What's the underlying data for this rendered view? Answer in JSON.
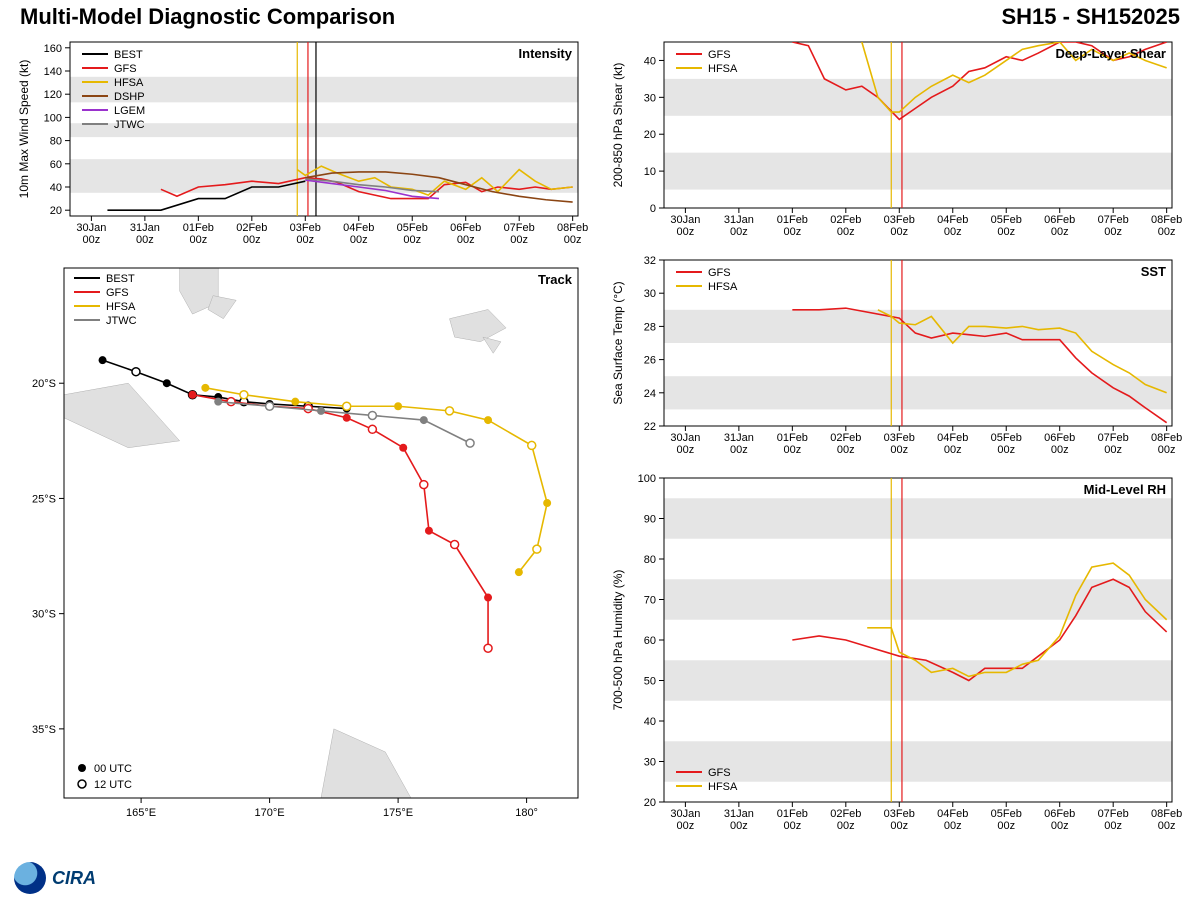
{
  "header": {
    "title_left": "Multi-Model Diagnostic Comparison",
    "title_right": "SH15 - SH152025"
  },
  "time_axis": {
    "labels": [
      "30Jan\n00z",
      "31Jan\n00z",
      "01Feb\n00z",
      "02Feb\n00z",
      "03Feb\n00z",
      "04Feb\n00z",
      "05Feb\n00z",
      "06Feb\n00z",
      "07Feb\n00z",
      "08Feb\n00z"
    ],
    "x_values": [
      0,
      1,
      2,
      3,
      4,
      5,
      6,
      7,
      8,
      9
    ]
  },
  "colors": {
    "BEST": "#000000",
    "GFS": "#e41a1c",
    "HFSA": "#e6b800",
    "DSHP": "#8b4513",
    "LGEM": "#9a32cd",
    "JTWC": "#808080",
    "bg": "#ffffff",
    "band": "#e5e5e5",
    "axis": "#000000"
  },
  "analysis_vlines": {
    "GFS_x": 4.05,
    "HFSA_x": 3.85,
    "BEST_x": 4.2
  },
  "intensity": {
    "type": "line",
    "title": "Intensity",
    "ylabel": "10m Max Wind Speed (kt)",
    "ylim": [
      15,
      165
    ],
    "yticks": [
      20,
      40,
      60,
      80,
      100,
      120,
      140,
      160
    ],
    "bands": [
      [
        35,
        64
      ],
      [
        83,
        95
      ],
      [
        113,
        135
      ]
    ],
    "legend_models": [
      "BEST",
      "GFS",
      "HFSA",
      "DSHP",
      "LGEM",
      "JTWC"
    ],
    "series": {
      "BEST": [
        [
          0.3,
          20
        ],
        [
          0.6,
          20
        ],
        [
          1,
          20
        ],
        [
          1.3,
          20
        ],
        [
          2,
          30
        ],
        [
          2.5,
          30
        ],
        [
          3,
          40
        ],
        [
          3.5,
          40
        ],
        [
          4,
          45
        ]
      ],
      "GFS": [
        [
          1.3,
          38
        ],
        [
          1.6,
          32
        ],
        [
          2,
          40
        ],
        [
          2.5,
          42
        ],
        [
          3,
          45
        ],
        [
          3.5,
          43
        ],
        [
          4,
          48
        ],
        [
          4.3,
          47
        ],
        [
          4.6,
          44
        ],
        [
          5,
          36
        ],
        [
          5.3,
          33
        ],
        [
          5.6,
          30
        ],
        [
          6,
          30
        ],
        [
          6.3,
          30
        ],
        [
          6.6,
          42
        ],
        [
          7,
          44
        ],
        [
          7.3,
          36
        ],
        [
          7.6,
          40
        ],
        [
          8,
          38
        ],
        [
          8.3,
          40
        ],
        [
          8.6,
          38
        ],
        [
          9,
          40
        ]
      ],
      "HFSA": [
        [
          3.85,
          55
        ],
        [
          4,
          50
        ],
        [
          4.3,
          58
        ],
        [
          4.6,
          52
        ],
        [
          5,
          45
        ],
        [
          5.3,
          48
        ],
        [
          5.6,
          40
        ],
        [
          6,
          38
        ],
        [
          6.3,
          33
        ],
        [
          6.6,
          45
        ],
        [
          7,
          38
        ],
        [
          7.3,
          48
        ],
        [
          7.6,
          36
        ],
        [
          8,
          55
        ],
        [
          8.3,
          45
        ],
        [
          8.6,
          38
        ],
        [
          9,
          40
        ]
      ],
      "DSHP": [
        [
          4,
          48
        ],
        [
          4.5,
          52
        ],
        [
          5,
          53
        ],
        [
          5.5,
          53
        ],
        [
          6,
          51
        ],
        [
          6.5,
          48
        ],
        [
          7,
          42
        ],
        [
          7.5,
          36
        ],
        [
          8,
          32
        ],
        [
          8.5,
          29
        ],
        [
          9,
          27
        ]
      ],
      "LGEM": [
        [
          4,
          46
        ],
        [
          4.5,
          43
        ],
        [
          5,
          40
        ],
        [
          5.5,
          37
        ],
        [
          6,
          32
        ],
        [
          6.5,
          30
        ]
      ],
      "JTWC": [
        [
          4,
          47
        ],
        [
          4.5,
          45
        ],
        [
          5,
          42
        ],
        [
          5.5,
          40
        ],
        [
          6,
          37
        ],
        [
          6.5,
          36
        ]
      ]
    }
  },
  "shear": {
    "type": "line",
    "title": "Deep-Layer Shear",
    "ylabel": "200-850 hPa Shear (kt)",
    "ylim": [
      0,
      45
    ],
    "yticks": [
      0,
      10,
      20,
      30,
      40
    ],
    "bands": [
      [
        5,
        15
      ],
      [
        25,
        35
      ]
    ],
    "legend_models": [
      "GFS",
      "HFSA"
    ],
    "series": {
      "GFS": [
        [
          2.0,
          45
        ],
        [
          2.3,
          44
        ],
        [
          2.6,
          35
        ],
        [
          3,
          32
        ],
        [
          3.3,
          33
        ],
        [
          3.6,
          30
        ],
        [
          4,
          24
        ],
        [
          4.3,
          27
        ],
        [
          4.6,
          30
        ],
        [
          5,
          33
        ],
        [
          5.3,
          37
        ],
        [
          5.6,
          38
        ],
        [
          6,
          41
        ],
        [
          6.3,
          40
        ],
        [
          6.6,
          42
        ],
        [
          7,
          45
        ],
        [
          7.3,
          45
        ],
        [
          7.6,
          44
        ],
        [
          8,
          40
        ],
        [
          8.3,
          41
        ],
        [
          8.6,
          43
        ],
        [
          9,
          45
        ]
      ],
      "HFSA": [
        [
          3.3,
          45
        ],
        [
          3.6,
          30
        ],
        [
          3.85,
          26
        ],
        [
          4,
          26
        ],
        [
          4.3,
          30
        ],
        [
          4.6,
          33
        ],
        [
          5,
          36
        ],
        [
          5.3,
          34
        ],
        [
          5.6,
          36
        ],
        [
          6,
          40
        ],
        [
          6.3,
          43
        ],
        [
          6.6,
          44
        ],
        [
          7,
          45
        ],
        [
          7.3,
          40
        ],
        [
          7.6,
          43
        ],
        [
          8,
          40
        ],
        [
          8.3,
          42
        ],
        [
          8.6,
          40
        ],
        [
          9,
          38
        ]
      ]
    }
  },
  "sst": {
    "type": "line",
    "title": "SST",
    "ylabel": "Sea Surface Temp (°C)",
    "ylim": [
      22,
      32
    ],
    "yticks": [
      22,
      24,
      26,
      28,
      30,
      32
    ],
    "bands": [
      [
        23,
        25
      ],
      [
        27,
        29
      ]
    ],
    "legend_models": [
      "GFS",
      "HFSA"
    ],
    "series": {
      "GFS": [
        [
          2.0,
          29.0
        ],
        [
          2.5,
          29.0
        ],
        [
          3,
          29.1
        ],
        [
          4,
          28.5
        ],
        [
          4.3,
          27.6
        ],
        [
          4.6,
          27.3
        ],
        [
          5,
          27.6
        ],
        [
          5.3,
          27.5
        ],
        [
          5.6,
          27.4
        ],
        [
          6,
          27.6
        ],
        [
          6.3,
          27.2
        ],
        [
          6.6,
          27.2
        ],
        [
          7,
          27.2
        ],
        [
          7.3,
          26.1
        ],
        [
          7.6,
          25.2
        ],
        [
          8,
          24.3
        ],
        [
          8.3,
          23.8
        ],
        [
          8.6,
          23.1
        ],
        [
          9,
          22.2
        ]
      ],
      "HFSA": [
        [
          3.6,
          29.0
        ],
        [
          3.85,
          28.6
        ],
        [
          4,
          28.2
        ],
        [
          4.3,
          28.1
        ],
        [
          4.6,
          28.6
        ],
        [
          5,
          27.0
        ],
        [
          5.3,
          28.0
        ],
        [
          5.6,
          28.0
        ],
        [
          6,
          27.9
        ],
        [
          6.3,
          28.0
        ],
        [
          6.6,
          27.8
        ],
        [
          7,
          27.9
        ],
        [
          7.3,
          27.6
        ],
        [
          7.6,
          26.5
        ],
        [
          8,
          25.7
        ],
        [
          8.3,
          25.2
        ],
        [
          8.6,
          24.5
        ],
        [
          9,
          24.0
        ]
      ]
    }
  },
  "rh": {
    "type": "line",
    "title": "Mid-Level RH",
    "ylabel": "700-500 hPa Humidity (%)",
    "ylim": [
      20,
      100
    ],
    "yticks": [
      20,
      30,
      40,
      50,
      60,
      70,
      80,
      90,
      100
    ],
    "bands": [
      [
        25,
        35
      ],
      [
        45,
        55
      ],
      [
        65,
        75
      ],
      [
        85,
        95
      ]
    ],
    "legend_models": [
      "GFS",
      "HFSA"
    ],
    "legend_pos": "bottom-left",
    "series": {
      "GFS": [
        [
          2.0,
          60
        ],
        [
          2.5,
          61
        ],
        [
          3,
          60
        ],
        [
          3.5,
          58
        ],
        [
          4,
          56
        ],
        [
          4.5,
          55
        ],
        [
          5,
          52
        ],
        [
          5.3,
          50
        ],
        [
          5.6,
          53
        ],
        [
          6,
          53
        ],
        [
          6.3,
          53
        ],
        [
          6.6,
          56
        ],
        [
          7,
          60
        ],
        [
          7.3,
          66
        ],
        [
          7.6,
          73
        ],
        [
          8,
          75
        ],
        [
          8.3,
          73
        ],
        [
          8.6,
          67
        ],
        [
          9,
          62
        ]
      ],
      "HFSA": [
        [
          3.4,
          63
        ],
        [
          3.6,
          63
        ],
        [
          3.85,
          63
        ],
        [
          4,
          57
        ],
        [
          4.3,
          55
        ],
        [
          4.6,
          52
        ],
        [
          5,
          53
        ],
        [
          5.3,
          51
        ],
        [
          5.6,
          52
        ],
        [
          6,
          52
        ],
        [
          6.3,
          54
        ],
        [
          6.6,
          55
        ],
        [
          7,
          61
        ],
        [
          7.3,
          71
        ],
        [
          7.6,
          78
        ],
        [
          8,
          79
        ],
        [
          8.3,
          76
        ],
        [
          8.6,
          70
        ],
        [
          9,
          65
        ]
      ]
    }
  },
  "track": {
    "type": "map",
    "title": "Track",
    "xlim": [
      162,
      182
    ],
    "ylim": [
      -38,
      -15
    ],
    "xticks": [
      165,
      170,
      175,
      180
    ],
    "xtick_labels": [
      "165°E",
      "170°E",
      "175°E",
      "180°"
    ],
    "yticks": [
      -20,
      -25,
      -30,
      -35
    ],
    "ytick_labels": [
      "20°S",
      "25°S",
      "30°S",
      "35°S"
    ],
    "legend_models": [
      "BEST",
      "GFS",
      "HFSA",
      "JTWC"
    ],
    "marker_legend": [
      {
        "label": "00 UTC",
        "fill": "solid"
      },
      {
        "label": "12 UTC",
        "fill": "open"
      }
    ],
    "tracks": {
      "BEST": [
        [
          163.5,
          -19.0,
          0
        ],
        [
          164.8,
          -19.5,
          1
        ],
        [
          166.0,
          -20.0,
          0
        ],
        [
          167.0,
          -20.5,
          1
        ],
        [
          168.0,
          -20.6,
          0
        ],
        [
          169.0,
          -20.8,
          1
        ],
        [
          170.0,
          -20.9,
          0
        ],
        [
          171.5,
          -21.0,
          1
        ],
        [
          173.0,
          -21.1,
          0
        ]
      ],
      "GFS": [
        [
          167.0,
          -20.5,
          0
        ],
        [
          168.5,
          -20.8,
          1
        ],
        [
          170.0,
          -21.0,
          0
        ],
        [
          171.5,
          -21.1,
          1
        ],
        [
          173.0,
          -21.5,
          0
        ],
        [
          174.0,
          -22.0,
          1
        ],
        [
          175.2,
          -22.8,
          0
        ],
        [
          176.0,
          -24.4,
          1
        ],
        [
          176.2,
          -26.4,
          0
        ],
        [
          177.2,
          -27.0,
          1
        ],
        [
          178.5,
          -29.3,
          0
        ],
        [
          178.5,
          -31.5,
          1
        ]
      ],
      "HFSA": [
        [
          167.5,
          -20.2,
          0
        ],
        [
          169.0,
          -20.5,
          1
        ],
        [
          171.0,
          -20.8,
          0
        ],
        [
          173.0,
          -21.0,
          1
        ],
        [
          175.0,
          -21.0,
          0
        ],
        [
          177.0,
          -21.2,
          1
        ],
        [
          178.5,
          -21.6,
          0
        ],
        [
          180.2,
          -22.7,
          1
        ],
        [
          180.8,
          -25.2,
          0
        ],
        [
          180.4,
          -27.2,
          1
        ],
        [
          179.7,
          -28.2,
          0
        ]
      ],
      "JTWC": [
        [
          168.0,
          -20.8,
          0
        ],
        [
          170.0,
          -21.0,
          1
        ],
        [
          172.0,
          -21.2,
          0
        ],
        [
          174.0,
          -21.4,
          1
        ],
        [
          176.0,
          -21.6,
          0
        ],
        [
          177.8,
          -22.6,
          1
        ]
      ]
    },
    "landmasses": [
      [
        [
          162,
          -20.5
        ],
        [
          164.5,
          -20.0
        ],
        [
          166.5,
          -22.5
        ],
        [
          164.5,
          -22.8
        ],
        [
          162,
          -21.5
        ]
      ],
      [
        [
          166.5,
          -15
        ],
        [
          168,
          -15
        ],
        [
          168,
          -16.5
        ],
        [
          167,
          -17
        ],
        [
          166.5,
          -16
        ]
      ],
      [
        [
          167.8,
          -16.2
        ],
        [
          168.7,
          -16.4
        ],
        [
          168.2,
          -17.2
        ],
        [
          167.6,
          -16.8
        ]
      ],
      [
        [
          177.0,
          -17.2
        ],
        [
          178.5,
          -16.8
        ],
        [
          179.2,
          -17.6
        ],
        [
          178.2,
          -18.2
        ],
        [
          177.2,
          -18.0
        ]
      ],
      [
        [
          178.3,
          -18.0
        ],
        [
          179.0,
          -18.2
        ],
        [
          178.7,
          -18.7
        ]
      ],
      [
        [
          172.5,
          -35.0
        ],
        [
          174.5,
          -36.0
        ],
        [
          175.5,
          -38.0
        ],
        [
          172.0,
          -38.0
        ]
      ]
    ]
  },
  "chart_style": {
    "line_width": 1.6,
    "tick_fontsize": 11,
    "panel_title_fontsize": 13,
    "axis_title_fontsize": 12
  },
  "logo": {
    "org": "CIRA"
  }
}
